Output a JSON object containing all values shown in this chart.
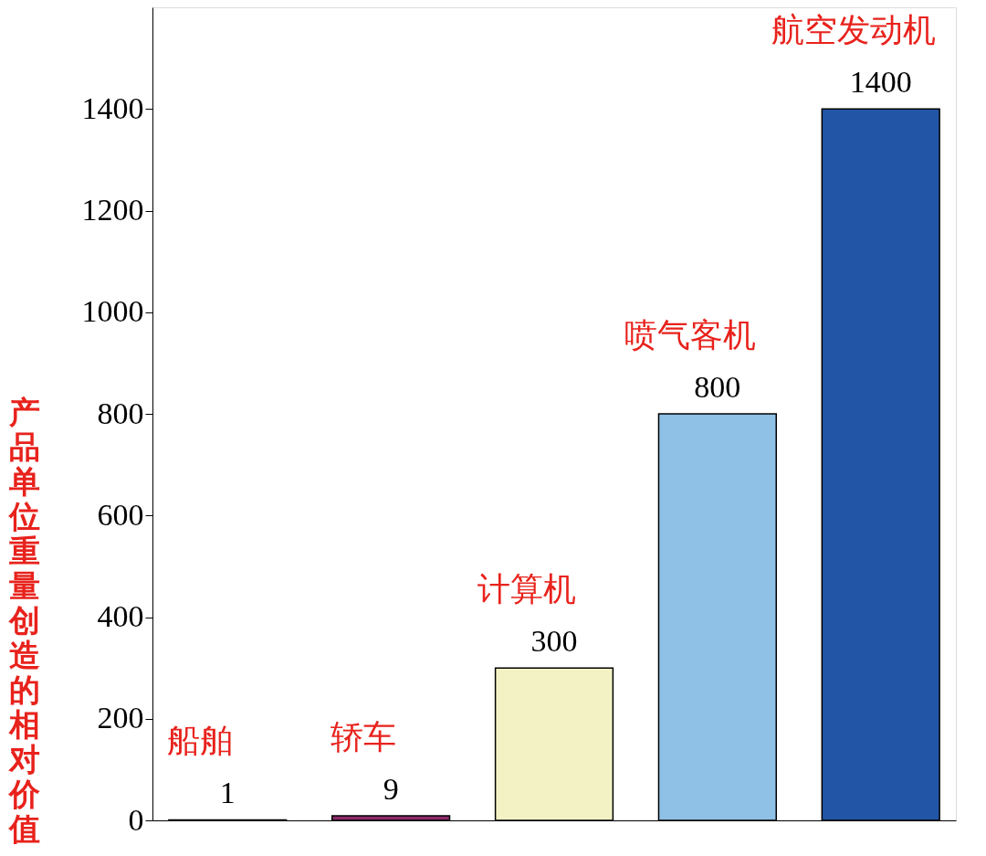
{
  "chart_data": {
    "type": "bar",
    "ylabel": "产品单位重量创造的相对价值",
    "categories": [
      "船舶",
      "轿车",
      "计算机",
      "喷气客机",
      "航空发动机"
    ],
    "values": [
      1,
      9,
      300,
      800,
      1400
    ],
    "colors": [
      "#7a2a66",
      "#8b2a6a",
      "#f2f2c4",
      "#8fc0e6",
      "#2255a5"
    ],
    "ylim": [
      0,
      1600
    ],
    "yticks": [
      0,
      200,
      400,
      600,
      800,
      1000,
      1200,
      1400
    ],
    "data_labels": true,
    "tick_labels": "y",
    "grid": false
  }
}
